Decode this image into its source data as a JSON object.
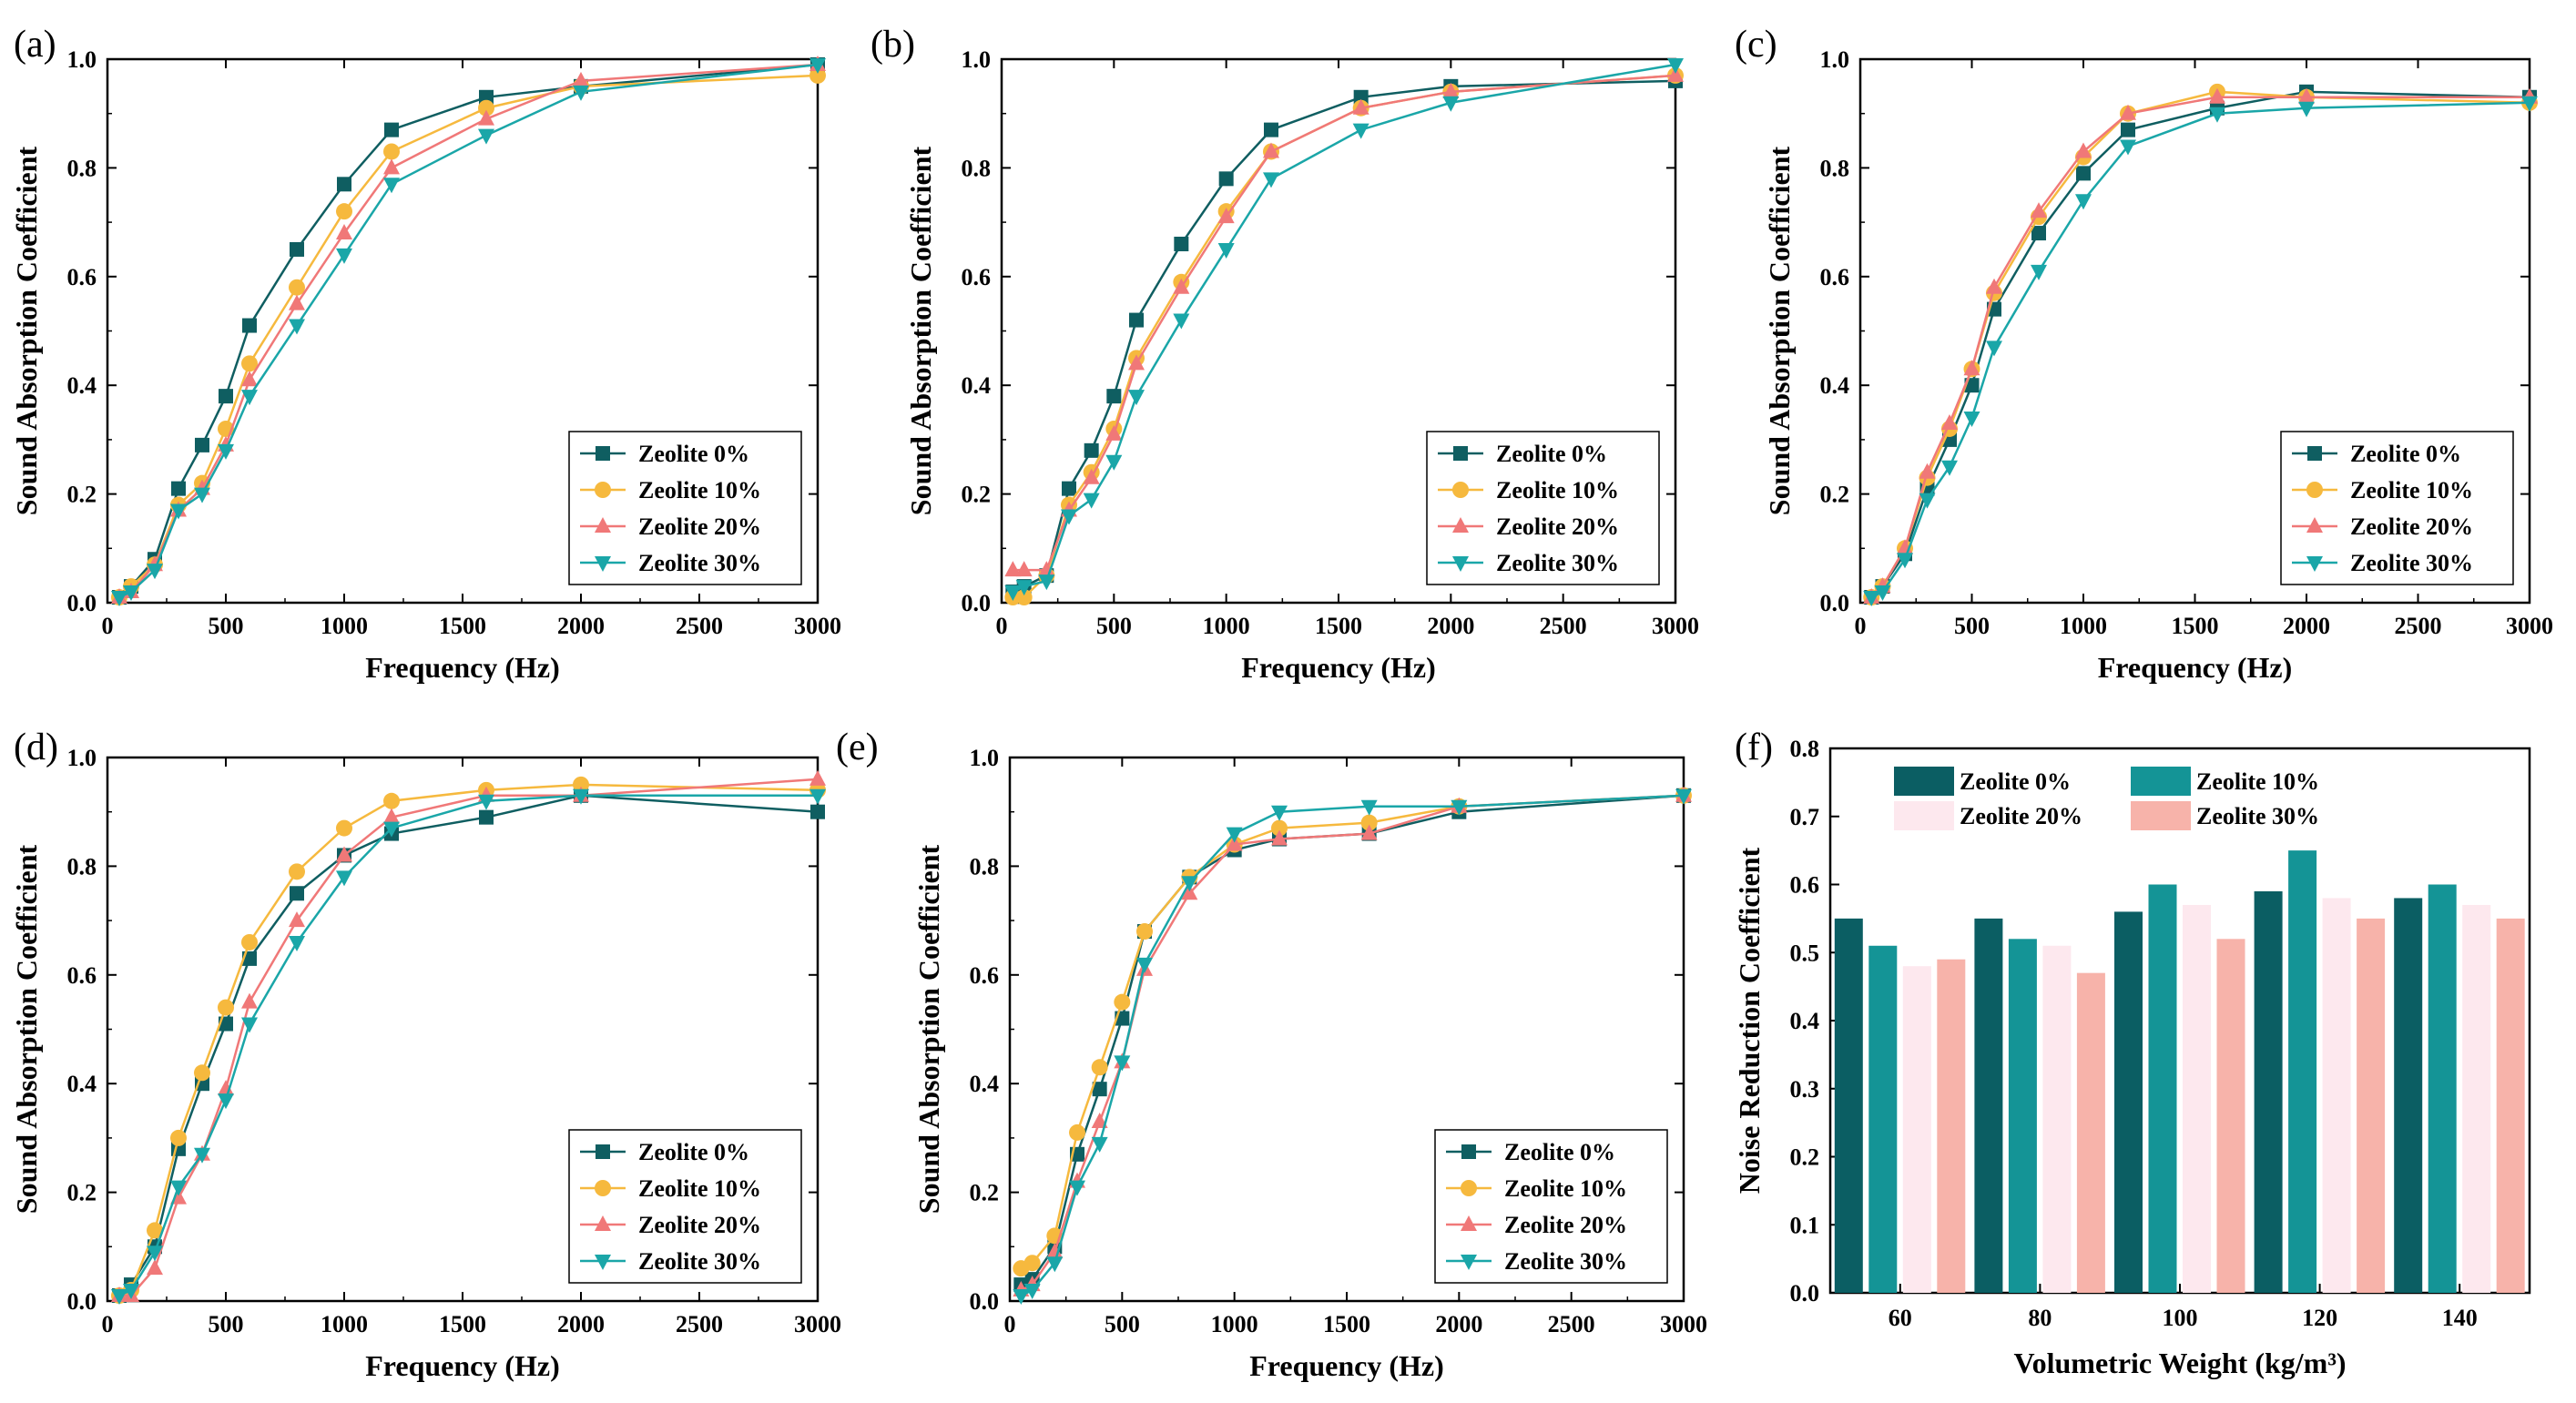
{
  "figure": {
    "colors": {
      "Zeolite 0%": "#0f5e61",
      "Zeolite 10%": "#f6b93e",
      "Zeolite 20%": "#f07878",
      "Zeolite 30%": "#1aa6a8"
    },
    "bar_colors": {
      "Zeolite 0%": "#0b5e63",
      "Zeolite 10%": "#149496",
      "Zeolite 20%": "#fde8ee",
      "Zeolite 30%": "#f7b3aa"
    },
    "markers": {
      "Zeolite 0%": "square",
      "Zeolite 10%": "circle",
      "Zeolite 20%": "triangle-up",
      "Zeolite 30%": "triangle-down"
    }
  },
  "chart_data": [
    {
      "panel": "(a)",
      "type": "line",
      "xlabel": "Frequency (Hz)",
      "ylabel": "Sound Absorption Coefficient",
      "xlim": [
        0,
        3000
      ],
      "ylim": [
        0,
        1.0
      ],
      "xticks": [
        "0",
        "500",
        "1000",
        "1500",
        "2000",
        "2500",
        "3000"
      ],
      "yticks": [
        "0.0",
        "0.2",
        "0.4",
        "0.6",
        "0.8",
        "1.0"
      ],
      "legend": [
        "Zeolite 0%",
        "Zeolite 10%",
        "Zeolite 20%",
        "Zeolite 30%"
      ],
      "legend_position": "bottom-right",
      "x": [
        50,
        100,
        200,
        300,
        400,
        500,
        600,
        800,
        1000,
        1200,
        1600,
        2000,
        3000
      ],
      "series": [
        {
          "name": "Zeolite 0%",
          "values": [
            0.01,
            0.03,
            0.08,
            0.21,
            0.29,
            0.38,
            0.51,
            0.65,
            0.77,
            0.87,
            0.93,
            0.95,
            0.99
          ]
        },
        {
          "name": "Zeolite 10%",
          "values": [
            0.01,
            0.03,
            0.07,
            0.18,
            0.22,
            0.32,
            0.44,
            0.58,
            0.72,
            0.83,
            0.91,
            0.95,
            0.97
          ]
        },
        {
          "name": "Zeolite 20%",
          "values": [
            0.01,
            0.02,
            0.07,
            0.17,
            0.21,
            0.29,
            0.41,
            0.55,
            0.68,
            0.8,
            0.89,
            0.96,
            0.99
          ]
        },
        {
          "name": "Zeolite 30%",
          "values": [
            0.01,
            0.02,
            0.06,
            0.17,
            0.2,
            0.28,
            0.38,
            0.51,
            0.64,
            0.77,
            0.86,
            0.94,
            0.99
          ]
        }
      ]
    },
    {
      "panel": "(b)",
      "type": "line",
      "xlabel": "Frequency (Hz)",
      "ylabel": "Sound Absorption Coefficient",
      "xlim": [
        0,
        3000
      ],
      "ylim": [
        0,
        1.0
      ],
      "xticks": [
        "0",
        "500",
        "1000",
        "1500",
        "2000",
        "2500",
        "3000"
      ],
      "yticks": [
        "0.0",
        "0.2",
        "0.4",
        "0.6",
        "0.8",
        "1.0"
      ],
      "legend": [
        "Zeolite 0%",
        "Zeolite 10%",
        "Zeolite 20%",
        "Zeolite 30%"
      ],
      "legend_position": "bottom-right",
      "x": [
        50,
        100,
        200,
        300,
        400,
        500,
        600,
        800,
        1000,
        1200,
        1600,
        2000,
        3000
      ],
      "series": [
        {
          "name": "Zeolite 0%",
          "values": [
            0.02,
            0.03,
            0.05,
            0.21,
            0.28,
            0.38,
            0.52,
            0.66,
            0.78,
            0.87,
            0.93,
            0.95,
            0.96
          ]
        },
        {
          "name": "Zeolite 10%",
          "values": [
            0.01,
            0.01,
            0.05,
            0.18,
            0.24,
            0.32,
            0.45,
            0.59,
            0.72,
            0.83,
            0.91,
            0.94,
            0.97
          ]
        },
        {
          "name": "Zeolite 20%",
          "values": [
            0.06,
            0.06,
            0.06,
            0.17,
            0.23,
            0.31,
            0.44,
            0.58,
            0.71,
            0.83,
            0.91,
            0.94,
            0.97
          ]
        },
        {
          "name": "Zeolite 30%",
          "values": [
            0.02,
            0.03,
            0.04,
            0.16,
            0.19,
            0.26,
            0.38,
            0.52,
            0.65,
            0.78,
            0.87,
            0.92,
            0.99
          ]
        }
      ]
    },
    {
      "panel": "(c)",
      "type": "line",
      "xlabel": "Frequency (Hz)",
      "ylabel": "Sound Absorption Coefficient",
      "xlim": [
        0,
        3000
      ],
      "ylim": [
        0,
        1.0
      ],
      "xticks": [
        "0",
        "500",
        "1000",
        "1500",
        "2000",
        "2500",
        "3000"
      ],
      "yticks": [
        "0.0",
        "0.2",
        "0.4",
        "0.6",
        "0.8",
        "1.0"
      ],
      "legend": [
        "Zeolite 0%",
        "Zeolite 10%",
        "Zeolite 20%",
        "Zeolite 30%"
      ],
      "legend_position": "bottom-right",
      "x": [
        50,
        100,
        200,
        300,
        400,
        500,
        600,
        800,
        1000,
        1200,
        1600,
        2000,
        3000
      ],
      "series": [
        {
          "name": "Zeolite 0%",
          "values": [
            0.01,
            0.03,
            0.09,
            0.21,
            0.3,
            0.4,
            0.54,
            0.68,
            0.79,
            0.87,
            0.91,
            0.94,
            0.93
          ]
        },
        {
          "name": "Zeolite 10%",
          "values": [
            0.01,
            0.03,
            0.1,
            0.23,
            0.32,
            0.43,
            0.57,
            0.71,
            0.82,
            0.9,
            0.94,
            0.93,
            0.92
          ]
        },
        {
          "name": "Zeolite 20%",
          "values": [
            0.01,
            0.03,
            0.1,
            0.24,
            0.33,
            0.43,
            0.58,
            0.72,
            0.83,
            0.9,
            0.93,
            0.93,
            0.93
          ]
        },
        {
          "name": "Zeolite 30%",
          "values": [
            0.01,
            0.02,
            0.08,
            0.19,
            0.25,
            0.34,
            0.47,
            0.61,
            0.74,
            0.84,
            0.9,
            0.91,
            0.92
          ]
        }
      ]
    },
    {
      "panel": "(d)",
      "type": "line",
      "xlabel": "Frequency (Hz)",
      "ylabel": "Sound Absorption Coefficient",
      "xlim": [
        0,
        3000
      ],
      "ylim": [
        0,
        1.0
      ],
      "xticks": [
        "0",
        "500",
        "1000",
        "1500",
        "2000",
        "2500",
        "3000"
      ],
      "yticks": [
        "0.0",
        "0.2",
        "0.4",
        "0.6",
        "0.8",
        "1.0"
      ],
      "legend": [
        "Zeolite 0%",
        "Zeolite 10%",
        "Zeolite 20%",
        "Zeolite 30%"
      ],
      "legend_position": "bottom-right",
      "x": [
        50,
        100,
        200,
        300,
        400,
        500,
        600,
        800,
        1000,
        1200,
        1600,
        2000,
        3000
      ],
      "series": [
        {
          "name": "Zeolite 0%",
          "values": [
            0.01,
            0.03,
            0.1,
            0.28,
            0.4,
            0.51,
            0.63,
            0.75,
            0.82,
            0.86,
            0.89,
            0.93,
            0.9
          ]
        },
        {
          "name": "Zeolite 10%",
          "values": [
            0.01,
            0.02,
            0.13,
            0.3,
            0.42,
            0.54,
            0.66,
            0.79,
            0.87,
            0.92,
            0.94,
            0.95,
            0.94
          ]
        },
        {
          "name": "Zeolite 20%",
          "values": [
            0.01,
            0.01,
            0.06,
            0.19,
            0.27,
            0.39,
            0.55,
            0.7,
            0.82,
            0.89,
            0.93,
            0.93,
            0.96
          ]
        },
        {
          "name": "Zeolite 30%",
          "values": [
            0.01,
            0.02,
            0.09,
            0.21,
            0.27,
            0.37,
            0.51,
            0.66,
            0.78,
            0.87,
            0.92,
            0.93,
            0.93
          ]
        }
      ]
    },
    {
      "panel": "(e)",
      "type": "line",
      "xlabel": "Frequency  (Hz)",
      "ylabel": "Sound Absorption Coefficient",
      "xlim": [
        0,
        3000
      ],
      "ylim": [
        0,
        1.0
      ],
      "xticks": [
        "0",
        "500",
        "1000",
        "1500",
        "2000",
        "2500",
        "3000"
      ],
      "yticks": [
        "0.0",
        "0.2",
        "0.4",
        "0.6",
        "0.8",
        "1.0"
      ],
      "legend": [
        "Zeolite 0%",
        "Zeolite 10%",
        "Zeolite 20%",
        "Zeolite 30%"
      ],
      "legend_position": "bottom-right",
      "x": [
        50,
        100,
        200,
        300,
        400,
        500,
        600,
        800,
        1000,
        1200,
        1600,
        2000,
        3000
      ],
      "series": [
        {
          "name": "Zeolite 0%",
          "values": [
            0.03,
            0.04,
            0.1,
            0.27,
            0.39,
            0.52,
            0.68,
            0.78,
            0.83,
            0.85,
            0.86,
            0.9,
            0.93
          ]
        },
        {
          "name": "Zeolite 10%",
          "values": [
            0.06,
            0.07,
            0.12,
            0.31,
            0.43,
            0.55,
            0.68,
            0.78,
            0.84,
            0.87,
            0.88,
            0.91,
            0.93
          ]
        },
        {
          "name": "Zeolite 20%",
          "values": [
            0.02,
            0.03,
            0.09,
            0.22,
            0.33,
            0.44,
            0.61,
            0.75,
            0.84,
            0.85,
            0.86,
            0.91,
            0.93
          ]
        },
        {
          "name": "Zeolite 30%",
          "values": [
            0.01,
            0.02,
            0.07,
            0.21,
            0.29,
            0.44,
            0.62,
            0.77,
            0.86,
            0.9,
            0.91,
            0.91,
            0.93
          ]
        }
      ]
    },
    {
      "panel": "(f)",
      "type": "bar",
      "xlabel": "Volumetric Weight (kg/m³)",
      "ylabel": "Noise Reduction Coefficient",
      "ylim": [
        0,
        0.8
      ],
      "yticks": [
        "0.0",
        "0.1",
        "0.2",
        "0.3",
        "0.4",
        "0.5",
        "0.6",
        "0.7",
        "0.8"
      ],
      "categories": [
        "60",
        "80",
        "100",
        "120",
        "140"
      ],
      "legend": [
        "Zeolite 0%",
        "Zeolite 10%",
        "Zeolite 20%",
        "Zeolite 30%"
      ],
      "legend_position": "top",
      "series": [
        {
          "name": "Zeolite 0%",
          "values": [
            0.55,
            0.55,
            0.56,
            0.59,
            0.58
          ]
        },
        {
          "name": "Zeolite 10%",
          "values": [
            0.51,
            0.52,
            0.6,
            0.65,
            0.6
          ]
        },
        {
          "name": "Zeolite 20%",
          "values": [
            0.48,
            0.51,
            0.57,
            0.58,
            0.57
          ]
        },
        {
          "name": "Zeolite 30%",
          "values": [
            0.49,
            0.47,
            0.52,
            0.55,
            0.55
          ]
        }
      ]
    }
  ]
}
